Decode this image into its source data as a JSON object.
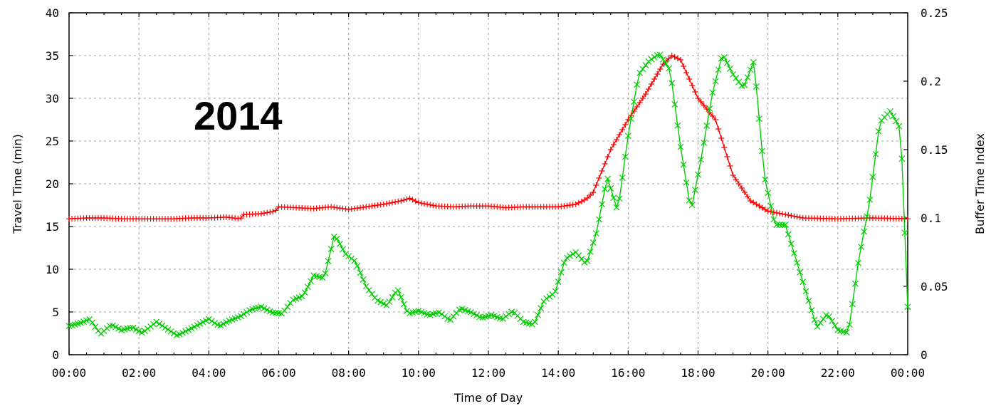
{
  "chart_data": {
    "type": "line",
    "annotation": "2014",
    "xlabel": "Time of Day",
    "ylabel": "Travel Time (min)",
    "y2label": "Buffer Time Index",
    "xlim": [
      0,
      24
    ],
    "ylim": [
      0,
      40
    ],
    "y2lim": [
      0,
      0.25
    ],
    "grid": true,
    "xticks": [
      0,
      2,
      4,
      6,
      8,
      10,
      12,
      14,
      16,
      18,
      20,
      22,
      24
    ],
    "xtick_labels": [
      "00:00",
      "02:00",
      "04:00",
      "06:00",
      "08:00",
      "10:00",
      "12:00",
      "14:00",
      "16:00",
      "18:00",
      "20:00",
      "22:00",
      "00:00"
    ],
    "yticks": [
      0,
      5,
      10,
      15,
      20,
      25,
      30,
      35,
      40
    ],
    "ytick_labels": [
      "0",
      "5",
      "10",
      "15",
      "20",
      "25",
      "30",
      "35",
      "40"
    ],
    "y2ticks": [
      0,
      0.05,
      0.1,
      0.15,
      0.2,
      0.25
    ],
    "y2tick_labels": [
      "0",
      "0.05",
      "0.1",
      "0.15",
      "0.2",
      "0.25"
    ],
    "series": [
      {
        "axis": "left",
        "color": "#ff0000",
        "marker": "plus",
        "x": [
          0,
          0.5,
          1,
          1.5,
          2,
          2.5,
          3,
          3.5,
          4,
          4.5,
          4.9,
          5,
          5.5,
          5.9,
          6,
          6.5,
          7,
          7.5,
          8,
          8.5,
          9,
          9.5,
          9.75,
          10,
          10.5,
          11,
          11.5,
          12,
          12.5,
          13,
          13.5,
          14,
          14.5,
          14.8,
          15,
          15.5,
          16,
          16.5,
          17,
          17.25,
          17.5,
          18,
          18.5,
          19,
          19.5,
          20,
          20.5,
          21,
          22,
          23,
          24
        ],
        "y": [
          15.9,
          16,
          16,
          15.9,
          15.9,
          15.9,
          15.9,
          16,
          16,
          16.1,
          15.9,
          16.4,
          16.5,
          16.8,
          17.3,
          17.2,
          17.1,
          17.3,
          17,
          17.3,
          17.6,
          18,
          18.3,
          17.8,
          17.4,
          17.3,
          17.4,
          17.4,
          17.2,
          17.3,
          17.3,
          17.3,
          17.6,
          18.2,
          19,
          24,
          27.5,
          30.5,
          34,
          35,
          34.5,
          30,
          27.5,
          21,
          18,
          16.8,
          16.4,
          16,
          15.9,
          16,
          15.9
        ]
      },
      {
        "axis": "right",
        "color": "#00cc00",
        "marker": "x",
        "x": [
          0,
          0.3,
          0.6,
          0.9,
          1.2,
          1.5,
          1.8,
          2.1,
          2.5,
          2.8,
          3.1,
          3.4,
          3.7,
          4.0,
          4.3,
          4.6,
          4.9,
          5.2,
          5.5,
          5.8,
          6.1,
          6.4,
          6.7,
          7.0,
          7.3,
          7.6,
          7.9,
          8.2,
          8.5,
          8.8,
          9.1,
          9.4,
          9.7,
          10.0,
          10.3,
          10.6,
          10.9,
          11.2,
          11.5,
          11.8,
          12.1,
          12.4,
          12.7,
          13.0,
          13.3,
          13.6,
          13.9,
          14.2,
          14.5,
          14.8,
          15.1,
          15.4,
          15.7,
          16.0,
          16.3,
          16.6,
          16.9,
          17.2,
          17.5,
          17.8,
          18.1,
          18.4,
          18.7,
          19.0,
          19.3,
          19.6,
          19.9,
          20.2,
          20.5,
          20.8,
          21.1,
          21.4,
          21.7,
          22.0,
          22.3,
          22.6,
          22.9,
          23.2,
          23.5,
          23.8,
          24.0
        ],
        "y": [
          0.021,
          0.023,
          0.026,
          0.015,
          0.022,
          0.018,
          0.02,
          0.016,
          0.024,
          0.019,
          0.014,
          0.018,
          0.022,
          0.026,
          0.021,
          0.025,
          0.028,
          0.033,
          0.035,
          0.031,
          0.03,
          0.04,
          0.043,
          0.058,
          0.056,
          0.088,
          0.074,
          0.068,
          0.05,
          0.04,
          0.036,
          0.048,
          0.03,
          0.032,
          0.029,
          0.031,
          0.025,
          0.034,
          0.031,
          0.027,
          0.029,
          0.026,
          0.032,
          0.024,
          0.022,
          0.04,
          0.045,
          0.07,
          0.075,
          0.066,
          0.09,
          0.13,
          0.105,
          0.16,
          0.205,
          0.215,
          0.22,
          0.208,
          0.152,
          0.105,
          0.145,
          0.19,
          0.22,
          0.205,
          0.195,
          0.215,
          0.13,
          0.095,
          0.095,
          0.07,
          0.045,
          0.02,
          0.03,
          0.018,
          0.016,
          0.07,
          0.11,
          0.17,
          0.178,
          0.165,
          0.035
        ]
      }
    ]
  }
}
